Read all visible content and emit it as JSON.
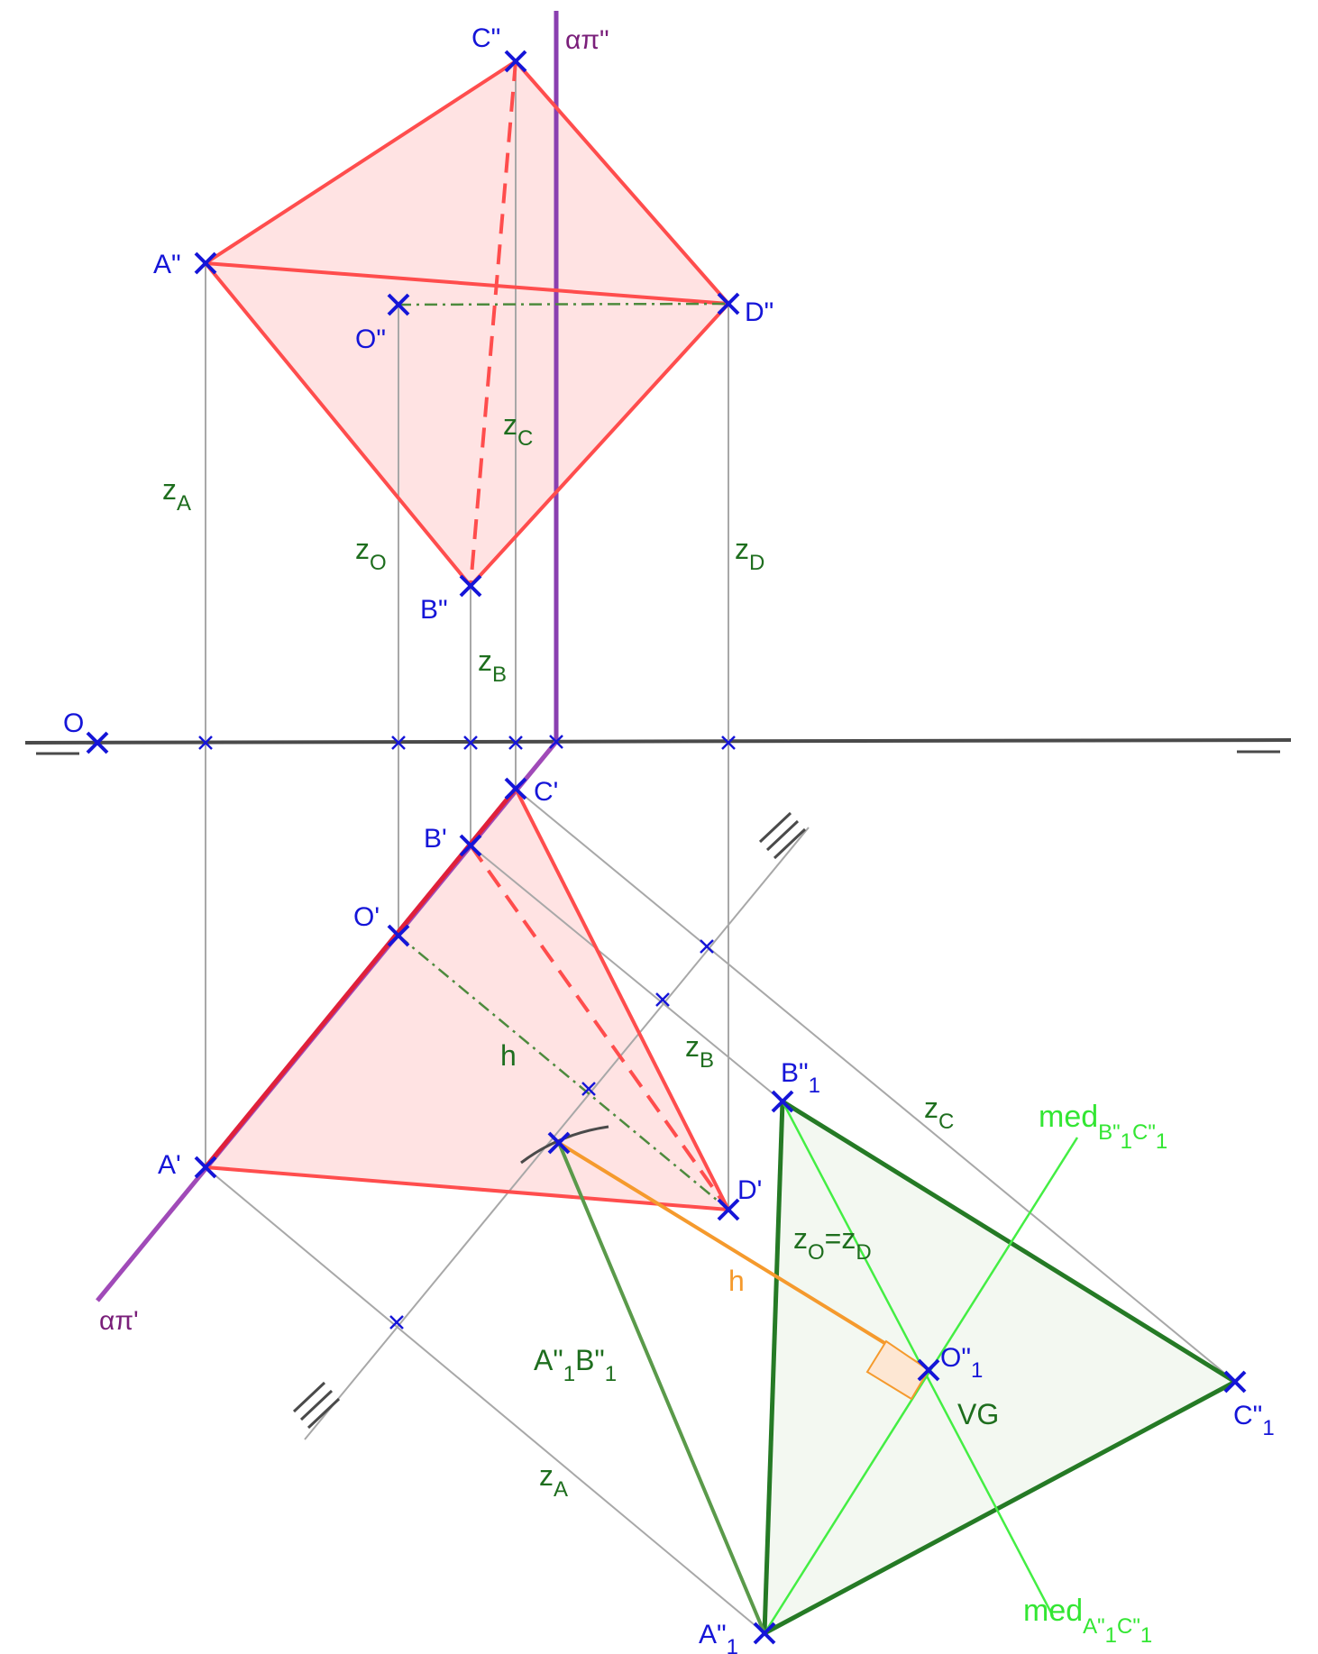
{
  "diagram": {
    "planes": {
      "alpha_vertical": "απ\"",
      "alpha_horizontal": "απ'"
    },
    "origin_label": "O",
    "vertical_projection_points": {
      "A": "A\"",
      "B": "B\"",
      "C": "C\"",
      "D": "D\"",
      "O": "O\""
    },
    "horizontal_projection_points": {
      "A": "A'",
      "B": "B'",
      "C": "C'",
      "D": "D'",
      "O": "O'"
    },
    "height_labels": {
      "z": "z",
      "A": "A",
      "B": "B",
      "C": "C",
      "D": "D",
      "O": "O",
      "zo_eq": "=z",
      "zo_eq_sub": "D"
    },
    "true_size": {
      "point_main": "A\"",
      "point_sub": "1",
      "B_main": "B\"",
      "C_main": "C\"",
      "O_main": "O\"",
      "index": "1",
      "edge_label_1": "A\"",
      "edge_label_2": "B\"",
      "vg_label": "VG"
    },
    "medians": {
      "prefix": "med",
      "m1_a": "B\"",
      "m1_b": "C\"",
      "m2_a": "A\"",
      "m2_b": "C\"",
      "idx": "1"
    },
    "h_label": "h",
    "h_orange_label": "h",
    "colors": {
      "point_blue": "#1515d8",
      "face_red": "#ff4d4d",
      "face_fill": "#ffe3e3",
      "construction_grey": "#a8a8a8",
      "trace_purple": "#8a3fb0",
      "true_size_green": "#257a25",
      "true_size_fill": "#f3f8f1",
      "median_lime": "#44ee44",
      "h_orange": "#f59a2d",
      "axis_dark": "#4a4a4a"
    }
  }
}
